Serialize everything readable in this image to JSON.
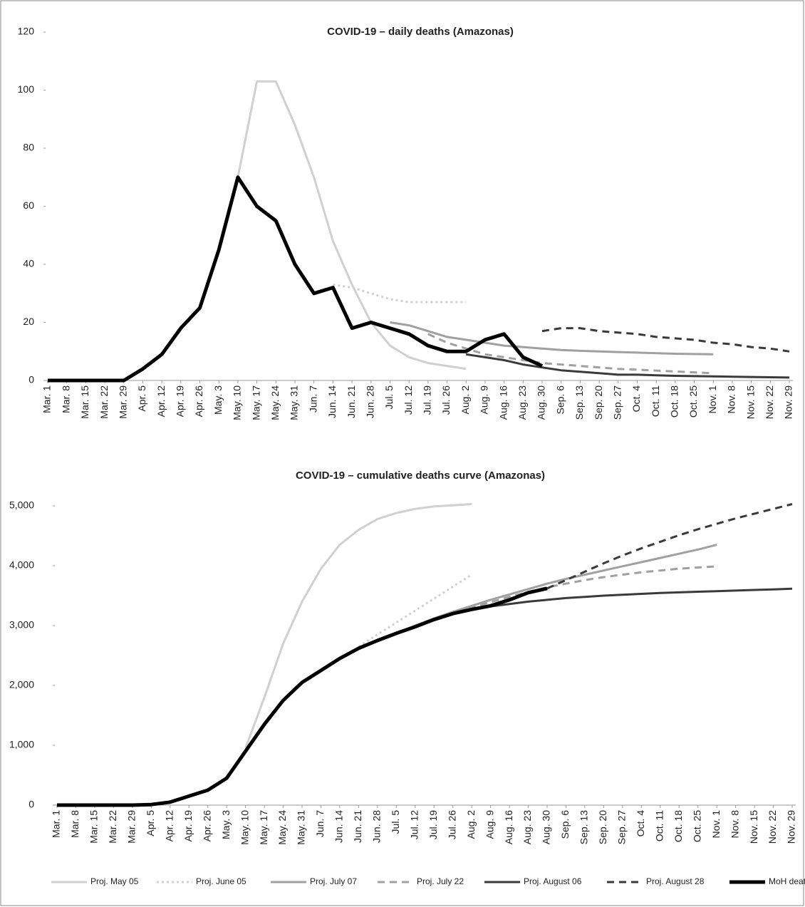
{
  "chart_data": [
    {
      "type": "line",
      "title": "COVID-19 – daily deaths (Amazonas)",
      "categories": [
        "Mar. 1",
        "Mar. 8",
        "Mar. 15",
        "Mar. 22",
        "Mar. 29",
        "Apr. 5",
        "Apr. 12",
        "Apr. 19",
        "Apr. 26",
        "May. 3",
        "May. 10",
        "May. 17",
        "May. 24",
        "May. 31",
        "Jun. 7",
        "Jun. 14",
        "Jun. 21",
        "Jun. 28",
        "Jul. 5",
        "Jul. 12",
        "Jul. 19",
        "Jul. 26",
        "Aug. 2",
        "Aug. 9",
        "Aug. 16",
        "Aug. 23",
        "Aug. 30",
        "Sep. 6",
        "Sep. 13",
        "Sep. 20",
        "Sep. 27",
        "Oct. 4",
        "Oct. 11",
        "Oct. 18",
        "Oct. 25",
        "Nov. 1",
        "Nov. 8",
        "Nov. 15",
        "Nov. 22",
        "Nov. 29"
      ],
      "ylim": [
        0,
        120
      ],
      "yticks": [
        0,
        20,
        40,
        60,
        80,
        100,
        120
      ],
      "series": [
        {
          "color": "#d0d0d0",
          "style": "solid",
          "width": 3,
          "values": [
            null,
            null,
            null,
            null,
            null,
            null,
            null,
            null,
            null,
            null,
            70,
            103,
            103,
            88,
            70,
            48,
            33,
            20,
            12,
            8,
            6,
            5,
            4,
            null,
            null,
            null,
            null,
            null,
            null,
            null,
            null,
            null,
            null,
            null,
            null,
            null,
            null,
            null,
            null,
            null
          ]
        },
        {
          "color": "#d0d0d0",
          "style": "dotted",
          "width": 3,
          "values": [
            null,
            null,
            null,
            null,
            null,
            null,
            null,
            null,
            null,
            null,
            null,
            null,
            null,
            null,
            null,
            33,
            32,
            30,
            28,
            27,
            27,
            27,
            27,
            null,
            null,
            null,
            null,
            null,
            null,
            null,
            null,
            null,
            null,
            null,
            null,
            null,
            null,
            null,
            null,
            null
          ]
        },
        {
          "color": "#a0a0a0",
          "style": "solid",
          "width": 3,
          "values": [
            null,
            null,
            null,
            null,
            null,
            null,
            null,
            null,
            null,
            null,
            null,
            null,
            null,
            null,
            null,
            null,
            null,
            null,
            20,
            19,
            17,
            15,
            14,
            13,
            12,
            11.5,
            11,
            10.5,
            10.2,
            10,
            9.8,
            9.6,
            9.4,
            9.2,
            9.1,
            9,
            null,
            null,
            null,
            null
          ]
        },
        {
          "color": "#a0a0a0",
          "style": "dashed",
          "width": 3,
          "values": [
            null,
            null,
            null,
            null,
            null,
            null,
            null,
            null,
            null,
            null,
            null,
            null,
            null,
            null,
            null,
            null,
            null,
            null,
            null,
            null,
            16,
            13,
            11,
            9,
            8,
            7,
            6,
            5.5,
            5,
            4.5,
            4,
            3.7,
            3.4,
            3.1,
            2.8,
            2.5,
            null,
            null,
            null,
            null
          ]
        },
        {
          "color": "#3a3a3a",
          "style": "solid",
          "width": 3,
          "values": [
            null,
            null,
            null,
            null,
            null,
            null,
            null,
            null,
            null,
            null,
            null,
            null,
            null,
            null,
            null,
            null,
            null,
            null,
            null,
            null,
            null,
            null,
            9,
            8,
            7,
            5.5,
            4.5,
            3.5,
            3,
            2.5,
            2,
            2,
            1.8,
            1.6,
            1.5,
            1.4,
            1.3,
            1.2,
            1.1,
            1
          ]
        },
        {
          "color": "#3a3a3a",
          "style": "dashed",
          "width": 3,
          "values": [
            null,
            null,
            null,
            null,
            null,
            null,
            null,
            null,
            null,
            null,
            null,
            null,
            null,
            null,
            null,
            null,
            null,
            null,
            null,
            null,
            null,
            null,
            null,
            null,
            null,
            null,
            17,
            18,
            18,
            17,
            16.5,
            16,
            15,
            14.5,
            14,
            13,
            12.5,
            11.5,
            11,
            10
          ]
        },
        {
          "color": "#000000",
          "style": "solid",
          "width": 5,
          "values": [
            0,
            0,
            0,
            0,
            0,
            4,
            9,
            18,
            25,
            45,
            70,
            60,
            55,
            40,
            30,
            32,
            18,
            20,
            18,
            16,
            12,
            10,
            10,
            14,
            16,
            8,
            5,
            null,
            null,
            null,
            null,
            null,
            null,
            null,
            null,
            null,
            null,
            null,
            null,
            null
          ]
        }
      ]
    },
    {
      "type": "line",
      "title": "COVID-19 – cumulative deaths curve (Amazonas)",
      "categories": [
        "Mar. 1",
        "Mar. 8",
        "Mar. 15",
        "Mar. 22",
        "Mar. 29",
        "Apr. 5",
        "Apr. 12",
        "Apr. 19",
        "Apr. 26",
        "May. 3",
        "May. 10",
        "May. 17",
        "May. 24",
        "May. 31",
        "Jun. 7",
        "Jun. 14",
        "Jun. 21",
        "Jun. 28",
        "Jul. 5",
        "Jul. 12",
        "Jul. 19",
        "Jul. 26",
        "Aug. 2",
        "Aug. 9",
        "Aug. 16",
        "Aug. 23",
        "Aug. 30",
        "Sep. 6",
        "Sep. 13",
        "Sep. 20",
        "Sep. 27",
        "Oct. 4",
        "Oct. 11",
        "Oct. 18",
        "Oct. 25",
        "Nov. 1",
        "Nov. 8",
        "Nov. 15",
        "Nov. 22",
        "Nov. 29"
      ],
      "ylim": [
        0,
        5000
      ],
      "yticks": [
        0,
        {
          "value": 1000,
          "label": "1,000"
        },
        {
          "value": 2000,
          "label": "2,000"
        },
        {
          "value": 3000,
          "label": "3,000"
        },
        {
          "value": 4000,
          "label": "4,000"
        },
        {
          "value": 5000,
          "label": "5,000"
        }
      ],
      "series": [
        {
          "name": "Proj. May 05",
          "color": "#d0d0d0",
          "style": "solid",
          "width": 3,
          "values": [
            null,
            null,
            null,
            null,
            null,
            null,
            null,
            null,
            null,
            null,
            950,
            1800,
            2700,
            3400,
            3950,
            4350,
            4600,
            4780,
            4880,
            4950,
            4990,
            5010,
            5030,
            null,
            null,
            null,
            null,
            null,
            null,
            null,
            null,
            null,
            null,
            null,
            null,
            null,
            null,
            null,
            null,
            null
          ]
        },
        {
          "name": "Proj. June 05",
          "color": "#d0d0d0",
          "style": "dotted",
          "width": 3,
          "values": [
            null,
            null,
            null,
            null,
            null,
            null,
            null,
            null,
            null,
            null,
            null,
            null,
            null,
            null,
            null,
            null,
            2650,
            2850,
            3050,
            3250,
            3450,
            3650,
            3850,
            null,
            null,
            null,
            null,
            null,
            null,
            null,
            null,
            null,
            null,
            null,
            null,
            null,
            null,
            null,
            null,
            null
          ]
        },
        {
          "name": "Proj. July 07",
          "color": "#a0a0a0",
          "style": "solid",
          "width": 3,
          "values": [
            null,
            null,
            null,
            null,
            null,
            null,
            null,
            null,
            null,
            null,
            null,
            null,
            null,
            null,
            null,
            null,
            null,
            null,
            2870,
            3000,
            3120,
            3230,
            3330,
            3430,
            3520,
            3610,
            3700,
            3780,
            3850,
            3920,
            3990,
            4060,
            4130,
            4200,
            4270,
            4350,
            null,
            null,
            null,
            null
          ]
        },
        {
          "name": "Proj. July 22",
          "color": "#a0a0a0",
          "style": "dashed",
          "width": 3,
          "values": [
            null,
            null,
            null,
            null,
            null,
            null,
            null,
            null,
            null,
            null,
            null,
            null,
            null,
            null,
            null,
            null,
            null,
            null,
            null,
            null,
            3110,
            3210,
            3300,
            3390,
            3480,
            3560,
            3640,
            3700,
            3760,
            3810,
            3850,
            3890,
            3920,
            3950,
            3970,
            3990,
            null,
            null,
            null,
            null
          ]
        },
        {
          "name": "Proj. August 06",
          "color": "#3a3a3a",
          "style": "solid",
          "width": 3,
          "values": [
            null,
            null,
            null,
            null,
            null,
            null,
            null,
            null,
            null,
            null,
            null,
            null,
            null,
            null,
            null,
            null,
            null,
            null,
            null,
            null,
            null,
            null,
            3270,
            3320,
            3360,
            3400,
            3430,
            3460,
            3480,
            3500,
            3515,
            3530,
            3545,
            3555,
            3565,
            3575,
            3585,
            3595,
            3605,
            3615
          ]
        },
        {
          "name": "Proj. August 28",
          "color": "#3a3a3a",
          "style": "dashed",
          "width": 3,
          "values": [
            null,
            null,
            null,
            null,
            null,
            null,
            null,
            null,
            null,
            null,
            null,
            null,
            null,
            null,
            null,
            null,
            null,
            null,
            null,
            null,
            null,
            null,
            null,
            null,
            null,
            null,
            3620,
            3760,
            3900,
            4040,
            4170,
            4290,
            4400,
            4510,
            4610,
            4700,
            4790,
            4870,
            4950,
            5030
          ]
        },
        {
          "name": "MoH deaths",
          "color": "#000000",
          "style": "solid",
          "width": 5,
          "values": [
            0,
            0,
            0,
            0,
            0,
            10,
            50,
            150,
            250,
            450,
            900,
            1350,
            1750,
            2050,
            2250,
            2450,
            2620,
            2750,
            2870,
            2980,
            3100,
            3200,
            3270,
            3330,
            3430,
            3550,
            3620,
            null,
            null,
            null,
            null,
            null,
            null,
            null,
            null,
            null,
            null,
            null,
            null,
            null
          ]
        }
      ]
    }
  ]
}
